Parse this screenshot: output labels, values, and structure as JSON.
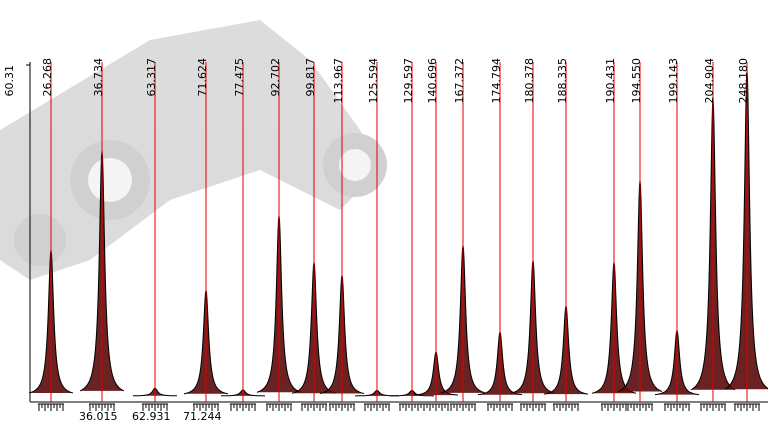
{
  "chart_data": {
    "type": "peaks",
    "categories": [
      "26.268",
      "36.734",
      "63.317",
      "71.624",
      "77.475",
      "92.702",
      "99.817",
      "113.967",
      "125.594",
      "129.597",
      "140.696",
      "167.372",
      "174.794",
      "180.378",
      "188.335",
      "190.431",
      "194.550",
      "199.143",
      "204.904",
      "248.180"
    ],
    "values": [
      26.2,
      44.6,
      0.7,
      18.8,
      0.4,
      32.6,
      24.0,
      21.6,
      0.3,
      0.3,
      7.4,
      27.1,
      11.1,
      24.3,
      15.9,
      24.0,
      39.1,
      11.4,
      54.2,
      59.4
    ],
    "window_labels": [
      null,
      "36.015",
      "62.931",
      "71.244",
      null,
      null,
      null,
      null,
      null,
      null,
      null,
      null,
      null,
      null,
      null,
      null,
      null,
      null,
      null,
      null
    ],
    "ylim": [
      0,
      60.31
    ],
    "yticks": [
      60.31
    ],
    "line_color": "#e00000",
    "peak_color": "#000000",
    "peak_fill": "#5a0a0a"
  }
}
